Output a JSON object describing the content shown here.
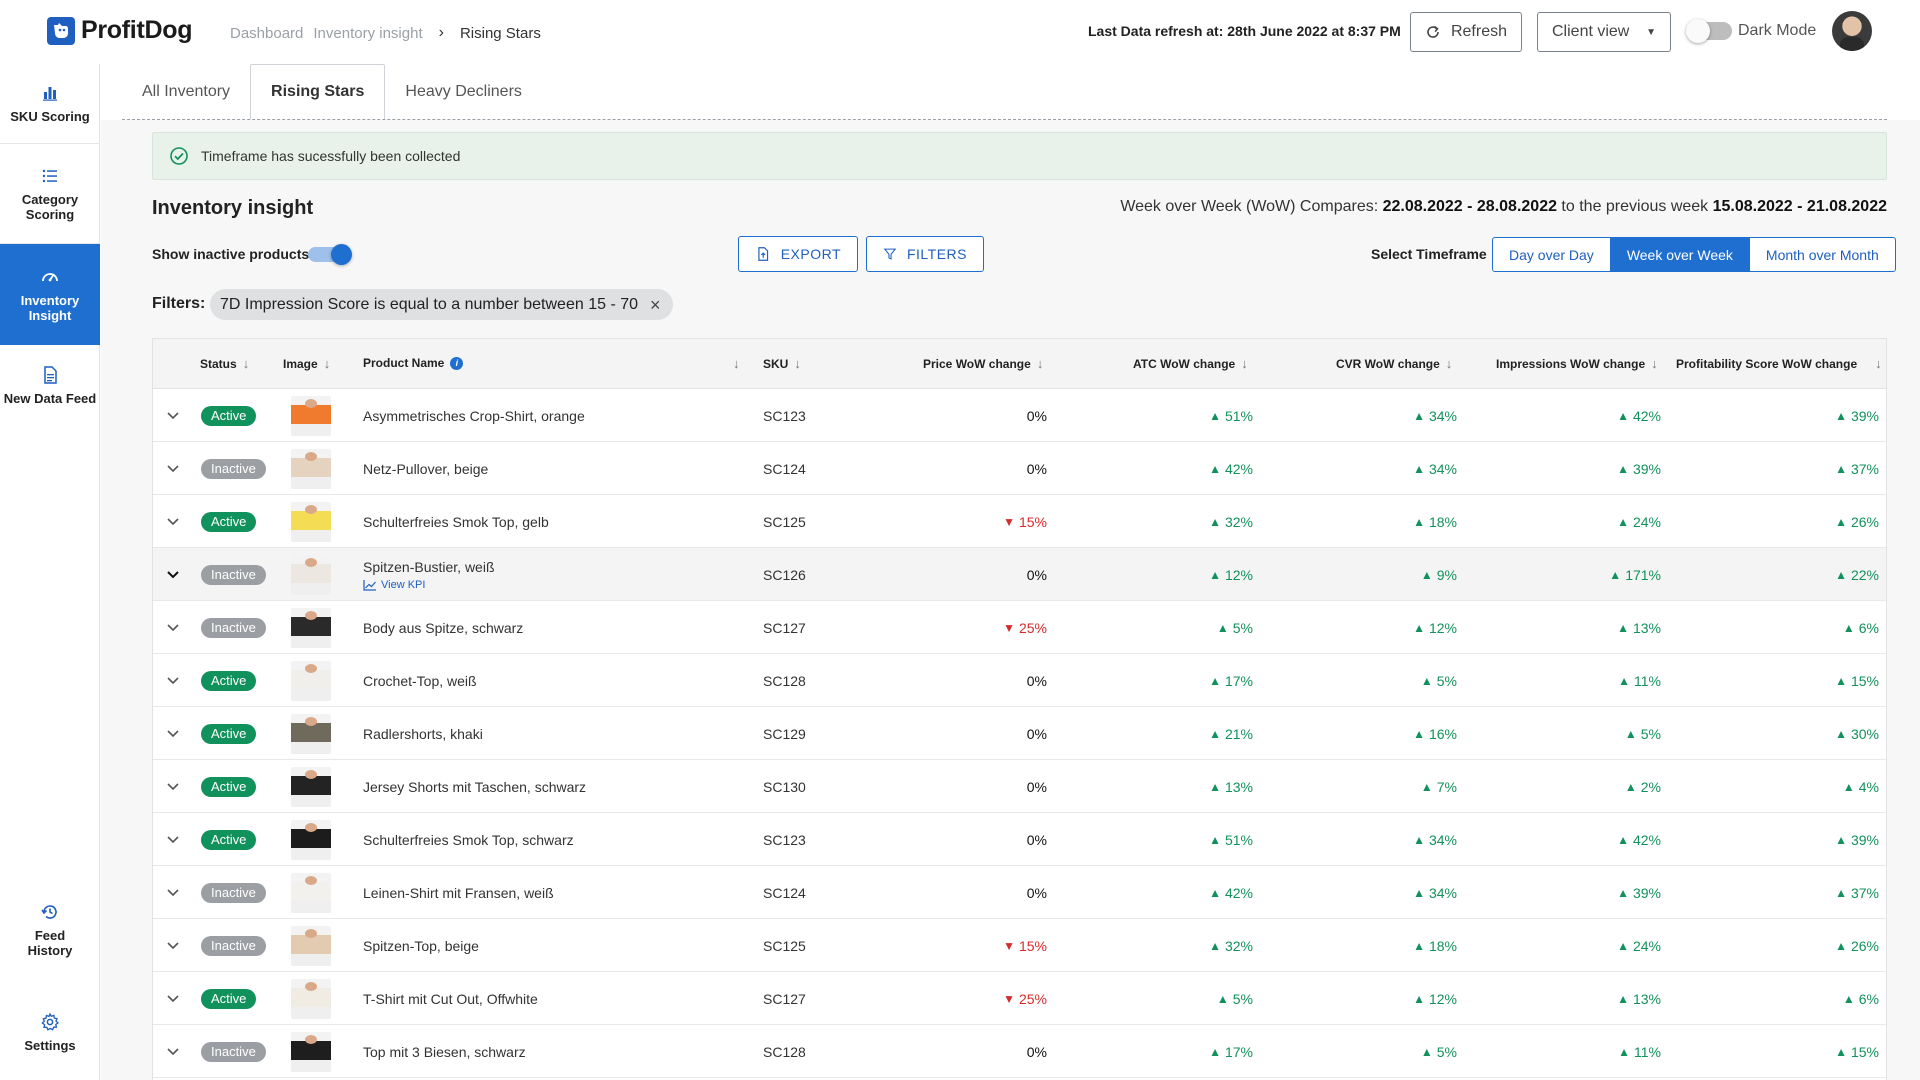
{
  "app": {
    "name": "ProfitDog",
    "breadcrumb": [
      "Dashboard",
      "Inventory insight",
      "Rising Stars"
    ],
    "refresh_info": "Last Data refresh at: 28th June 2022 at 8:37 PM",
    "refresh_label": "Refresh",
    "view_select": "Client view",
    "dark_mode_label": "Dark Mode"
  },
  "sidebar": {
    "items": [
      {
        "label": "SKU Scoring",
        "icon": "bar-chart-icon"
      },
      {
        "label": "Category Scoring",
        "icon": "list-icon"
      },
      {
        "label": "Inventory Insight",
        "icon": "gauge-icon",
        "active": true
      },
      {
        "label": "New Data Feed",
        "icon": "document-icon"
      },
      {
        "label": "Feed History",
        "icon": "history-icon"
      },
      {
        "label": "Settings",
        "icon": "gear-icon"
      }
    ]
  },
  "tabs": [
    {
      "label": "All Inventory"
    },
    {
      "label": "Rising Stars",
      "active": true
    },
    {
      "label": "Heavy Decliners"
    }
  ],
  "alert": {
    "message": "Timeframe has sucessfully been collected"
  },
  "page": {
    "title": "Inventory insight",
    "wow_prefix": "Week over Week (WoW) Compares: ",
    "current_range": "22.08.2022 - 28.08.2022",
    "wow_mid": " to the previous week ",
    "previous_range": "15.08.2022 - 21.08.2022",
    "show_inactive_label": "Show inactive products",
    "export_label": "EXPORT",
    "filters_label": "FILTERS",
    "timeframe_label": "Select Timeframe",
    "timeframes": [
      "Day over Day",
      "Week over Week",
      "Month over Month"
    ],
    "active_timeframe": "Week over Week",
    "filters_prefix": "Filters:",
    "filter_chip": "7D Impression Score is equal to a number between 15 - 70"
  },
  "table": {
    "headers": {
      "status": "Status",
      "image": "Image",
      "product": "Product Name",
      "sku": "SKU",
      "price": "Price WoW change",
      "atc": "ATC WoW change",
      "cvr": "CVR WoW change",
      "impressions": "Impressions WoW change",
      "profitability": "Profitability Score WoW change"
    },
    "view_kpi_label": "View KPI",
    "rows": [
      {
        "status": "Active",
        "name": "Asymmetrisches Crop-Shirt, orange",
        "sku": "SC123",
        "price": "0%",
        "atc": "51%",
        "cvr": "34%",
        "imp": "42%",
        "prof": "39%",
        "color": "#f07a2e"
      },
      {
        "status": "Inactive",
        "name": "Netz-Pullover, beige",
        "sku": "SC124",
        "price": "0%",
        "atc": "42%",
        "cvr": "34%",
        "imp": "39%",
        "prof": "37%",
        "color": "#e6d3bf"
      },
      {
        "status": "Active",
        "name": "Schulterfreies Smok Top, gelb",
        "sku": "SC125",
        "price": "15%",
        "price_dir": "down",
        "atc": "32%",
        "cvr": "18%",
        "imp": "24%",
        "prof": "26%",
        "color": "#f4dc55"
      },
      {
        "status": "Inactive",
        "name": "Spitzen-Bustier, weiß",
        "sku": "SC126",
        "price": "0%",
        "atc": "12%",
        "cvr": "9%",
        "imp": "171%",
        "prof": "22%",
        "color": "#ece7e1",
        "expanded": true
      },
      {
        "status": "Inactive",
        "name": "Body aus Spitze, schwarz",
        "sku": "SC127",
        "price": "25%",
        "price_dir": "down",
        "atc": "5%",
        "cvr": "12%",
        "imp": "13%",
        "prof": "6%",
        "color": "#2a2a2a"
      },
      {
        "status": "Active",
        "name": "Crochet-Top, weiß",
        "sku": "SC128",
        "price": "0%",
        "atc": "17%",
        "cvr": "5%",
        "imp": "11%",
        "prof": "15%",
        "color": "#f1efec"
      },
      {
        "status": "Active",
        "name": "Radlershorts, khaki",
        "sku": "SC129",
        "price": "0%",
        "atc": "21%",
        "cvr": "16%",
        "imp": "5%",
        "prof": "30%",
        "color": "#6f6a5c"
      },
      {
        "status": "Active",
        "name": "Jersey Shorts mit Taschen, schwarz",
        "sku": "SC130",
        "price": "0%",
        "atc": "13%",
        "cvr": "7%",
        "imp": "2%",
        "prof": "4%",
        "color": "#232323"
      },
      {
        "status": "Active",
        "name": "Schulterfreies Smok Top, schwarz",
        "sku": "SC123",
        "price": "0%",
        "atc": "51%",
        "cvr": "34%",
        "imp": "42%",
        "prof": "39%",
        "color": "#1c1c1c"
      },
      {
        "status": "Inactive",
        "name": "Leinen-Shirt mit Fransen, weiß",
        "sku": "SC124",
        "price": "0%",
        "atc": "42%",
        "cvr": "34%",
        "imp": "39%",
        "prof": "37%",
        "color": "#f3f1ee"
      },
      {
        "status": "Inactive",
        "name": "Spitzen-Top, beige",
        "sku": "SC125",
        "price": "15%",
        "price_dir": "down",
        "atc": "32%",
        "cvr": "18%",
        "imp": "24%",
        "prof": "26%",
        "color": "#e2cbb0"
      },
      {
        "status": "Active",
        "name": "T-Shirt mit Cut Out, Offwhite",
        "sku": "SC127",
        "price": "25%",
        "price_dir": "down",
        "atc": "5%",
        "cvr": "12%",
        "imp": "13%",
        "prof": "6%",
        "color": "#f0ece4"
      },
      {
        "status": "Inactive",
        "name": "Top mit 3 Biesen, schwarz",
        "sku": "SC128",
        "price": "0%",
        "atc": "17%",
        "cvr": "5%",
        "imp": "11%",
        "prof": "15%",
        "color": "#1e1e1e"
      }
    ]
  },
  "colors": {
    "primary": "#1f6fd1",
    "active_badge": "#11915b",
    "inactive_badge": "#9b9ea3",
    "up": "#11915b",
    "down": "#d62b2b",
    "alert_bg": "#e8f2ea"
  }
}
